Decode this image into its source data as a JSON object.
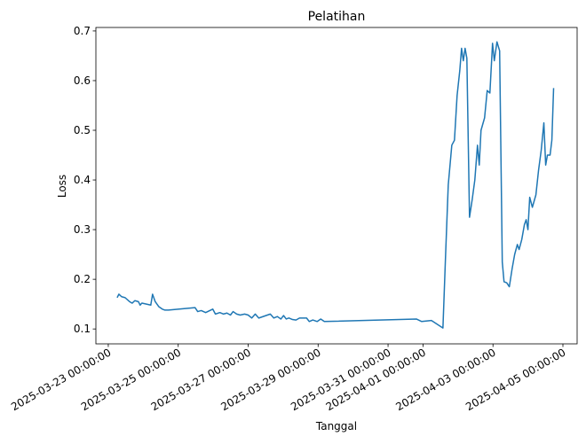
{
  "chart_data": {
    "type": "line",
    "title": "Pelatihan",
    "x_label": "Tanggal",
    "y_label": "Loss",
    "x": [
      "2025-03-23 06:05",
      "2025-03-23 07:17",
      "2025-03-23 09:07",
      "2025-03-23 11:33",
      "2025-03-23 14:35",
      "2025-03-23 16:24",
      "2025-03-23 18:14",
      "2025-03-23 20:40",
      "2025-03-23 21:52",
      "2025-03-23 23:05",
      "2025-03-24 02:08",
      "2025-03-24 05:10",
      "2025-03-24 06:23",
      "2025-03-24 08:12",
      "2025-03-24 10:38",
      "2025-03-24 13:04",
      "2025-03-24 14:53",
      "2025-03-24 17:19",
      "2025-03-25 11:32",
      "2025-03-25 13:22",
      "2025-03-25 15:48",
      "2025-03-25 18:50",
      "2025-03-25 23:42",
      "2025-03-26 01:31",
      "2025-03-26 04:34",
      "2025-03-26 06:59",
      "2025-03-26 09:25",
      "2025-03-26 11:51",
      "2025-03-26 13:40",
      "2025-03-26 16:06",
      "2025-03-26 18:32",
      "2025-03-26 21:34",
      "2025-03-27 00:00",
      "2025-03-27 02:26",
      "2025-03-27 04:52",
      "2025-03-27 07:17",
      "2025-03-27 15:11",
      "2025-03-27 17:37",
      "2025-03-27 20:03",
      "2025-03-27 22:29",
      "2025-03-28 00:18",
      "2025-03-28 02:08",
      "2025-03-28 03:57",
      "2025-03-28 06:23",
      "2025-03-28 08:49",
      "2025-03-28 11:14",
      "2025-03-28 16:06",
      "2025-03-28 17:56",
      "2025-03-28 20:22",
      "2025-03-28 23:23",
      "2025-03-29 01:49",
      "2025-03-29 04:15",
      "2025-03-31 19:26",
      "2025-03-31 23:05",
      "2025-04-01 05:46",
      "2025-04-01 13:40",
      "2025-04-01 15:30",
      "2025-04-01 17:19",
      "2025-04-01 19:45",
      "2025-04-01 21:34",
      "2025-04-01 23:23",
      "2025-04-02 01:13",
      "2025-04-02 02:26",
      "2025-04-02 03:39",
      "2025-04-02 04:52",
      "2025-04-02 06:05",
      "2025-04-02 07:54",
      "2025-04-02 09:43",
      "2025-04-02 11:33",
      "2025-04-02 13:22",
      "2025-04-02 14:35",
      "2025-04-02 15:48",
      "2025-04-02 18:14",
      "2025-04-02 20:03",
      "2025-04-02 21:53",
      "2025-04-02 23:42",
      "2025-04-03 00:55",
      "2025-04-03 02:44",
      "2025-04-03 04:34",
      "2025-04-03 06:23",
      "2025-04-03 07:36",
      "2025-04-03 09:25",
      "2025-04-03 11:14",
      "2025-04-03 13:04",
      "2025-04-03 14:53",
      "2025-04-03 16:43",
      "2025-04-03 17:56",
      "2025-04-03 19:45",
      "2025-04-03 21:34",
      "2025-04-03 22:47",
      "2025-04-04 00:00",
      "2025-04-04 01:13",
      "2025-04-04 03:02",
      "2025-04-04 05:28",
      "2025-04-04 07:18",
      "2025-04-04 09:07",
      "2025-04-04 10:56",
      "2025-04-04 12:10",
      "2025-04-04 13:22",
      "2025-04-04 15:11",
      "2025-04-04 16:25",
      "2025-04-04 17:37"
    ],
    "series": [
      {
        "name": "Loss",
        "color": "#1f77b4",
        "values": [
          0.163,
          0.17,
          0.165,
          0.163,
          0.155,
          0.152,
          0.157,
          0.155,
          0.148,
          0.152,
          0.15,
          0.148,
          0.17,
          0.155,
          0.145,
          0.14,
          0.138,
          0.138,
          0.143,
          0.135,
          0.137,
          0.133,
          0.14,
          0.13,
          0.133,
          0.13,
          0.132,
          0.128,
          0.135,
          0.13,
          0.128,
          0.13,
          0.128,
          0.122,
          0.13,
          0.122,
          0.13,
          0.122,
          0.125,
          0.12,
          0.127,
          0.12,
          0.122,
          0.119,
          0.118,
          0.122,
          0.122,
          0.115,
          0.118,
          0.115,
          0.12,
          0.115,
          0.12,
          0.115,
          0.117,
          0.102,
          0.25,
          0.39,
          0.47,
          0.48,
          0.57,
          0.62,
          0.665,
          0.64,
          0.665,
          0.645,
          0.325,
          0.36,
          0.4,
          0.47,
          0.43,
          0.5,
          0.525,
          0.58,
          0.575,
          0.675,
          0.64,
          0.678,
          0.66,
          0.235,
          0.195,
          0.193,
          0.185,
          0.22,
          0.25,
          0.27,
          0.26,
          0.28,
          0.31,
          0.32,
          0.3,
          0.365,
          0.345,
          0.37,
          0.42,
          0.46,
          0.515,
          0.43,
          0.45,
          0.45,
          0.48,
          0.585
        ]
      }
    ],
    "xlim": [
      "2025-03-22 15:30",
      "2025-04-05 09:45"
    ],
    "xticks": [
      "2025-03-23 00:00:00",
      "2025-03-25 00:00:00",
      "2025-03-27 00:00:00",
      "2025-03-29 00:00:00",
      "2025-03-31 00:00:00",
      "2025-04-01 00:00:00",
      "2025-04-03 00:00:00",
      "2025-04-05 00:00:00"
    ],
    "ylim": [
      0.07,
      0.707
    ],
    "yticks": [
      0.1,
      0.2,
      0.3,
      0.4,
      0.5,
      0.6,
      0.7
    ],
    "grid": false
  }
}
